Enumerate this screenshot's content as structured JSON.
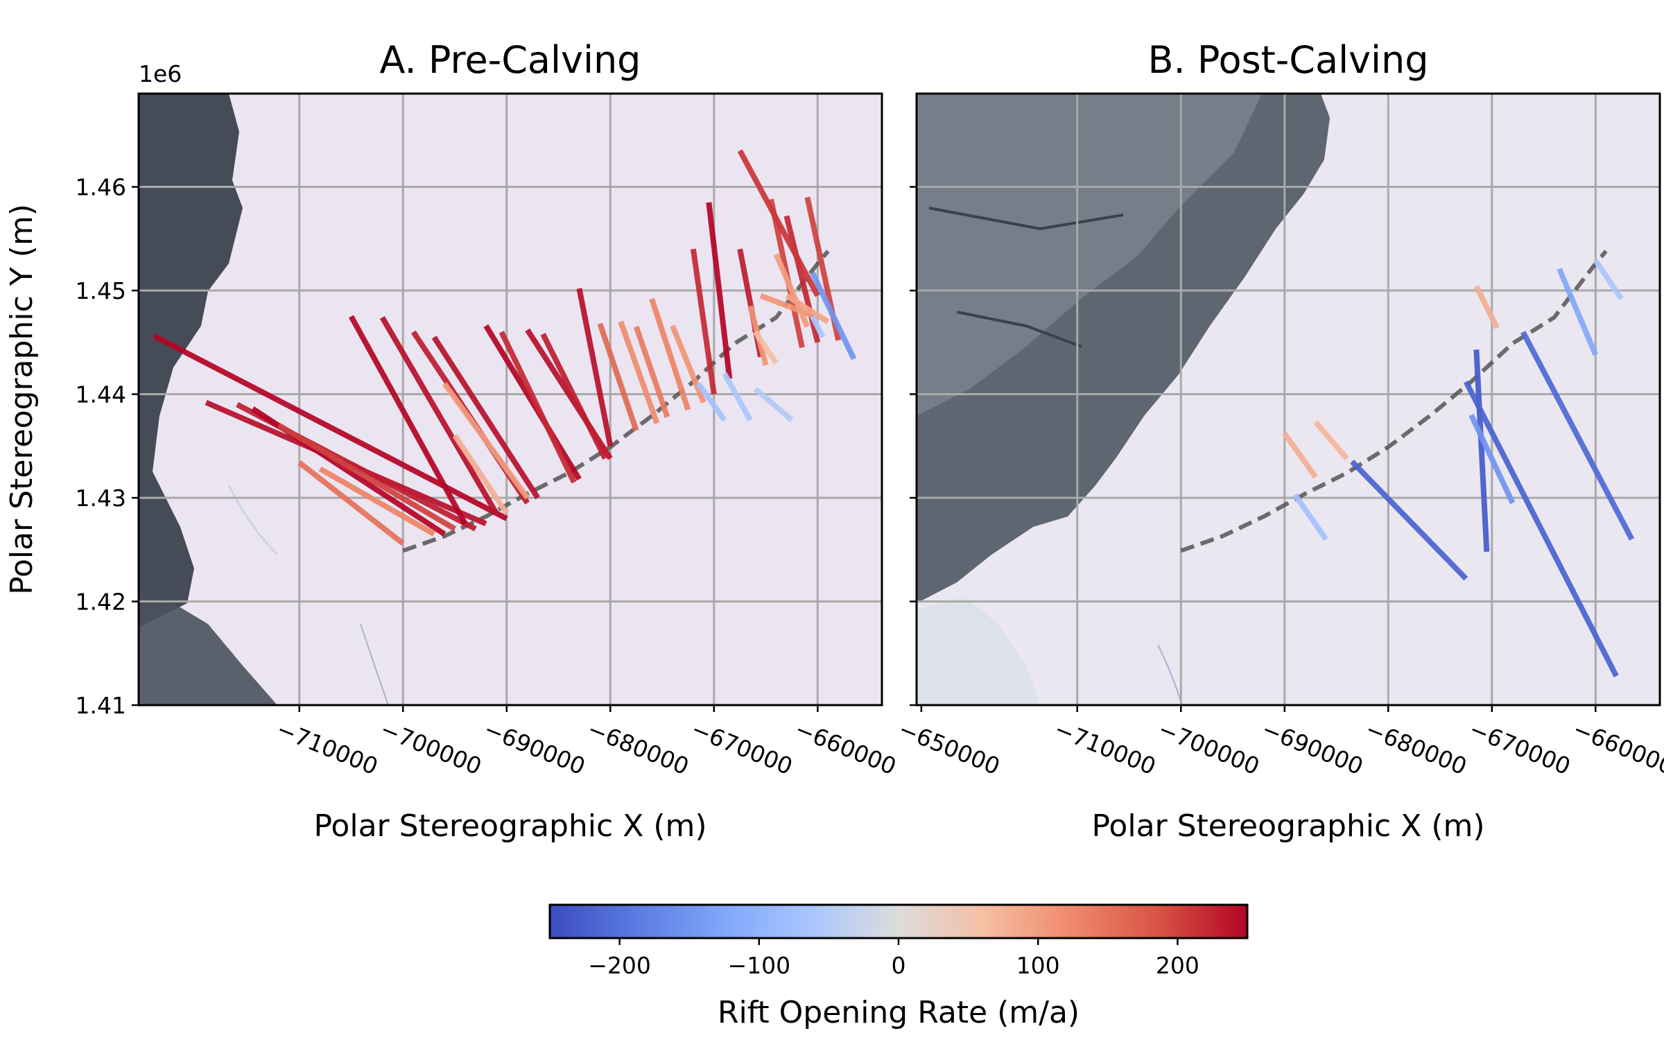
{
  "figure": {
    "offset_label": "1e6",
    "colorbar": {
      "label": "Rift Opening Rate (m/a)",
      "range": [
        -250,
        250
      ],
      "ticks": [
        -200,
        -100,
        0,
        100,
        200
      ],
      "tick_labels": [
        "−200",
        "−100",
        "0",
        "100",
        "200"
      ],
      "colormap": "coolwarm"
    }
  },
  "chart_data": [
    {
      "type": "line",
      "panel": "A",
      "title": "A. Pre-Calving",
      "xlabel": "Polar Stereographic X (m)",
      "ylabel": "Polar Stereographic Y (m)",
      "xlim": [
        -725500,
        -653800
      ],
      "ylim": [
        1410000,
        1469000
      ],
      "xticks": [
        -710000,
        -700000,
        -690000,
        -680000,
        -670000,
        -660000,
        -650000
      ],
      "xtick_labels": [
        "−710000",
        "−700000",
        "−690000",
        "−680000",
        "−670000",
        "−660000",
        "−650000"
      ],
      "yticks": [
        1410000,
        1420000,
        1430000,
        1440000,
        1450000,
        1460000
      ],
      "ytick_labels": [
        "1.41",
        "1.42",
        "1.43",
        "1.44",
        "1.45",
        "1.46"
      ],
      "grid": true,
      "background": "satellite image: grey open water / sea ice along left edge, white ice shelf elsewhere",
      "calving_front": {
        "style": "dashed",
        "color": "#555555",
        "x": [
          -700000,
          -696000,
          -692000,
          -688000,
          -684000,
          -680000,
          -676000,
          -672000,
          -668000,
          -664000,
          -660000,
          -659000
        ],
        "y": [
          1424900,
          1426300,
          1428200,
          1430400,
          1432400,
          1434900,
          1437900,
          1441200,
          1444900,
          1447400,
          1452600,
          1453800
        ]
      },
      "rifts": [
        {
          "x": [
            -724000,
            -690000
          ],
          "y": [
            1445600,
            1428000
          ],
          "rate": 250
        },
        {
          "x": [
            -719000,
            -692000
          ],
          "y": [
            1439200,
            1427500
          ],
          "rate": 240
        },
        {
          "x": [
            -716000,
            -693000
          ],
          "y": [
            1439000,
            1427000
          ],
          "rate": 230
        },
        {
          "x": [
            -714500,
            -696000
          ],
          "y": [
            1438600,
            1426500
          ],
          "rate": 250
        },
        {
          "x": [
            -712000,
            -695000
          ],
          "y": [
            1437000,
            1427000
          ],
          "rate": 200
        },
        {
          "x": [
            -710000,
            -700000
          ],
          "y": [
            1433400,
            1425600
          ],
          "rate": 150
        },
        {
          "x": [
            -708000,
            -697000
          ],
          "y": [
            1432800,
            1426500
          ],
          "rate": 130
        },
        {
          "x": [
            -705000,
            -694000
          ],
          "y": [
            1447500,
            1427500
          ],
          "rate": 250
        },
        {
          "x": [
            -702000,
            -691000
          ],
          "y": [
            1447400,
            1428500
          ],
          "rate": 240
        },
        {
          "x": [
            -699000,
            -688000
          ],
          "y": [
            1446000,
            1429500
          ],
          "rate": 230
        },
        {
          "x": [
            -697000,
            -687000
          ],
          "y": [
            1445500,
            1430000
          ],
          "rate": 240
        },
        {
          "x": [
            -696000,
            -688000
          ],
          "y": [
            1441000,
            1430000
          ],
          "rate": 100
        },
        {
          "x": [
            -695000,
            -690000
          ],
          "y": [
            1436000,
            1428500
          ],
          "rate": 80
        },
        {
          "x": [
            -692000,
            -683000
          ],
          "y": [
            1446600,
            1431800
          ],
          "rate": 250
        },
        {
          "x": [
            -690500,
            -683500
          ],
          "y": [
            1446000,
            1431500
          ],
          "rate": 220
        },
        {
          "x": [
            -688000,
            -680000
          ],
          "y": [
            1446200,
            1433800
          ],
          "rate": 240
        },
        {
          "x": [
            -686500,
            -680500
          ],
          "y": [
            1445800,
            1433800
          ],
          "rate": 230
        },
        {
          "x": [
            -683000,
            -680000
          ],
          "y": [
            1450200,
            1435000
          ],
          "rate": 240
        },
        {
          "x": [
            -681000,
            -677500
          ],
          "y": [
            1446800,
            1436500
          ],
          "rate": 160
        },
        {
          "x": [
            -679000,
            -675500
          ],
          "y": [
            1447000,
            1437200
          ],
          "rate": 120
        },
        {
          "x": [
            -677500,
            -674500
          ],
          "y": [
            1446500,
            1437800
          ],
          "rate": 140
        },
        {
          "x": [
            -676000,
            -672500
          ],
          "y": [
            1449200,
            1438500
          ],
          "rate": 130
        },
        {
          "x": [
            -674000,
            -671000
          ],
          "y": [
            1446600,
            1439200
          ],
          "rate": 110
        },
        {
          "x": [
            -672000,
            -670000
          ],
          "y": [
            1454000,
            1440000
          ],
          "rate": 220
        },
        {
          "x": [
            -670500,
            -668500
          ],
          "y": [
            1458500,
            1441500
          ],
          "rate": 250
        },
        {
          "x": [
            -667500,
            -665500
          ],
          "y": [
            1454000,
            1443600
          ],
          "rate": 230
        },
        {
          "x": [
            -666500,
            -665000
          ],
          "y": [
            1448500,
            1442800
          ],
          "rate": 110
        },
        {
          "x": [
            -666000,
            -664000
          ],
          "y": [
            1446000,
            1443000
          ],
          "rate": 60
        },
        {
          "x": [
            -664500,
            -661500
          ],
          "y": [
            1458800,
            1444500
          ],
          "rate": 200
        },
        {
          "x": [
            -663000,
            -660000
          ],
          "y": [
            1457200,
            1445000
          ],
          "rate": 220
        },
        {
          "x": [
            -661000,
            -658000
          ],
          "y": [
            1459000,
            1445200
          ],
          "rate": 200
        },
        {
          "x": [
            -665500,
            -660000
          ],
          "y": [
            1449500,
            1447400
          ],
          "rate": 110
        },
        {
          "x": [
            -663000,
            -659000
          ],
          "y": [
            1449500,
            1447000
          ],
          "rate": 90
        },
        {
          "x": [
            -667500,
            -660000
          ],
          "y": [
            1463500,
            1449500
          ],
          "rate": 210
        },
        {
          "x": [
            -664000,
            -661000
          ],
          "y": [
            1453500,
            1446500
          ],
          "rate": 100
        },
        {
          "x": [
            -660500,
            -659500
          ],
          "y": [
            1447500,
            1445500
          ],
          "rate": -60
        },
        {
          "x": [
            -669000,
            -666500
          ],
          "y": [
            1442000,
            1437500
          ],
          "rate": -60
        },
        {
          "x": [
            -671500,
            -669000
          ],
          "y": [
            1441000,
            1437500
          ],
          "rate": -70
        },
        {
          "x": [
            -666000,
            -662500
          ],
          "y": [
            1440500,
            1437500
          ],
          "rate": -50
        },
        {
          "x": [
            -660500,
            -656500
          ],
          "y": [
            1451700,
            1443400
          ],
          "rate": -150
        }
      ]
    },
    {
      "type": "line",
      "panel": "B",
      "title": "B. Post-Calving",
      "xlabel": "Polar Stereographic X (m)",
      "ylabel": "",
      "xlim": [
        -725500,
        -653800
      ],
      "ylim": [
        1410000,
        1469000
      ],
      "xticks": [
        -710000,
        -700000,
        -690000,
        -680000,
        -670000,
        -660000,
        -650000
      ],
      "xtick_labels": [
        "−710000",
        "−700000",
        "−690000",
        "−680000",
        "−670000",
        "−660000",
        "−650000"
      ],
      "yticks": [
        1410000,
        1420000,
        1430000,
        1440000,
        1450000,
        1460000
      ],
      "ytick_labels": [
        "",
        "",
        "",
        "",
        "",
        ""
      ],
      "grid": true,
      "background": "satellite image: dark grey calved iceberg and sea ice in upper left, white ice shelf lower right",
      "calving_front": {
        "style": "dashed",
        "color": "#555555",
        "x": [
          -700000,
          -696000,
          -692000,
          -688000,
          -684000,
          -680000,
          -676000,
          -672000,
          -668000,
          -664000,
          -660000,
          -659000
        ],
        "y": [
          1424900,
          1426300,
          1428200,
          1430400,
          1432400,
          1434900,
          1437900,
          1441200,
          1444900,
          1447400,
          1452600,
          1453800
        ]
      },
      "rifts": [
        {
          "x": [
            -690000,
            -687000
          ],
          "y": [
            1436200,
            1432000
          ],
          "rate": 80
        },
        {
          "x": [
            -687000,
            -684000
          ],
          "y": [
            1437300,
            1433800
          ],
          "rate": 70
        },
        {
          "x": [
            -689000,
            -686000
          ],
          "y": [
            1430300,
            1426000
          ],
          "rate": -70
        },
        {
          "x": [
            -683500,
            -672500
          ],
          "y": [
            1433500,
            1422200
          ],
          "rate": -220
        },
        {
          "x": [
            -671500,
            -670500
          ],
          "y": [
            1444300,
            1424800
          ],
          "rate": -230
        },
        {
          "x": [
            -672500,
            -658000
          ],
          "y": [
            1441200,
            1412800
          ],
          "rate": -220
        },
        {
          "x": [
            -667000,
            -656500
          ],
          "y": [
            1446000,
            1426000
          ],
          "rate": -210
        },
        {
          "x": [
            -672000,
            -668000
          ],
          "y": [
            1438000,
            1429500
          ],
          "rate": -150
        },
        {
          "x": [
            -671500,
            -669500
          ],
          "y": [
            1450400,
            1446400
          ],
          "rate": 80
        },
        {
          "x": [
            -663500,
            -660000
          ],
          "y": [
            1452100,
            1443800
          ],
          "rate": -120
        },
        {
          "x": [
            -660000,
            -657500
          ],
          "y": [
            1452900,
            1449200
          ],
          "rate": -60
        }
      ]
    }
  ]
}
